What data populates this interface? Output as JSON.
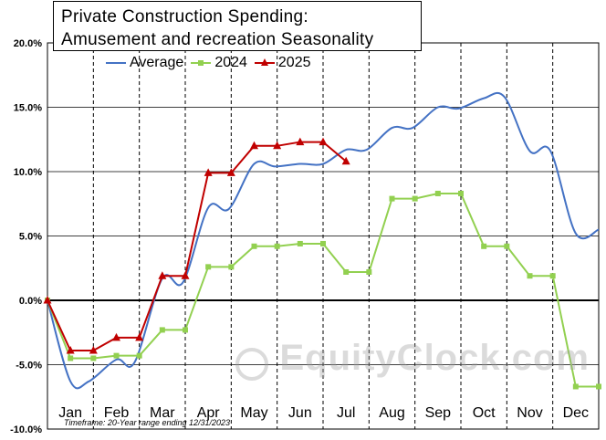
{
  "chart_data": {
    "type": "line",
    "title": [
      "Private Construction Spending:",
      "Amusement  and recreation  Seasonality"
    ],
    "categories": [
      "Jan",
      "Feb",
      "Mar",
      "Apr",
      "May",
      "Jun",
      "Jul",
      "Aug",
      "Sep",
      "Oct",
      "Nov",
      "Dec"
    ],
    "y_ticks": [
      "20.0%",
      "15.0%",
      "10.0%",
      "5.0%",
      "0.0%",
      "-5.0%",
      "-10.0%"
    ],
    "ylim": [
      -10,
      20
    ],
    "xlim": [
      0,
      12
    ],
    "grid": "horizontal major gridlines, dashed vertical month separators",
    "legend_position": "top",
    "series": [
      {
        "name": "Average",
        "color": "#4472c4",
        "style": "smooth line",
        "x": [
          0,
          0.5,
          0.9,
          1.5,
          1.9,
          2.5,
          2.95,
          3.5,
          3.95,
          4.5,
          4.95,
          5.5,
          6.0,
          6.5,
          6.95,
          7.5,
          7.95,
          8.5,
          8.95,
          9.5,
          9.95,
          10.5,
          10.95,
          11.5,
          12.0
        ],
        "y": [
          0.0,
          -6.3,
          -6.3,
          -4.6,
          -4.8,
          1.7,
          1.4,
          7.2,
          7.1,
          10.6,
          10.4,
          10.6,
          10.6,
          11.7,
          11.7,
          13.4,
          13.4,
          15.0,
          14.9,
          15.7,
          15.8,
          11.6,
          11.6,
          5.2,
          5.5
        ]
      },
      {
        "name": "2024",
        "color": "#92d050",
        "marker": "square",
        "x": [
          0,
          0.5,
          1.0,
          1.5,
          2.0,
          2.5,
          3.0,
          3.5,
          4.0,
          4.5,
          5.0,
          5.5,
          6.0,
          6.5,
          7.0,
          7.5,
          8.0,
          8.5,
          9.0,
          9.5,
          10.0,
          10.5,
          11.0,
          11.5,
          12.0
        ],
        "y": [
          0.0,
          -4.5,
          -4.5,
          -4.3,
          -4.3,
          -2.3,
          -2.3,
          2.6,
          2.6,
          4.2,
          4.2,
          4.4,
          4.4,
          2.2,
          2.2,
          7.9,
          7.9,
          8.3,
          8.3,
          4.2,
          4.2,
          1.9,
          1.9,
          -6.7,
          -6.7
        ]
      },
      {
        "name": "2025",
        "color": "#c00000",
        "marker": "triangle",
        "x": [
          0,
          0.5,
          1.0,
          1.5,
          2.0,
          2.5,
          3.0,
          3.5,
          4.0,
          4.5,
          5.0,
          5.5,
          6.0,
          6.5
        ],
        "y": [
          0.0,
          -3.9,
          -3.9,
          -2.9,
          -2.9,
          1.9,
          1.9,
          9.9,
          9.9,
          12.0,
          12.0,
          12.3,
          12.3,
          10.8
        ]
      }
    ],
    "footnote": "Timeframe: 20-Year range ending 12/31/2023"
  },
  "watermark": "EquityClock.com"
}
